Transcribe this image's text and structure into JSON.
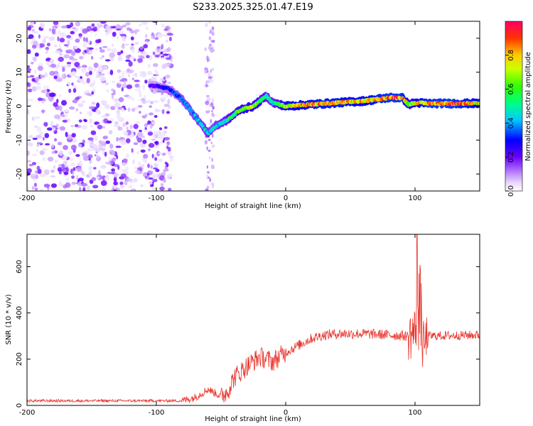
{
  "title": "S233.2025.325.01.47.E19",
  "chart_data": [
    {
      "type": "heatmap",
      "xlabel": "Height of straight line (km)",
      "ylabel": "Frequency (Hz)",
      "xlim": [
        -200,
        150
      ],
      "ylim": [
        -25,
        25
      ],
      "xticks": [
        -200,
        -100,
        0,
        100
      ],
      "yticks": [
        20,
        10,
        0,
        -10,
        -20
      ],
      "colorbar": {
        "label": "Normalized spectral amplitude",
        "range": [
          0,
          1
        ],
        "ticks": [
          0.0,
          0.2,
          0.4,
          0.6,
          0.8
        ],
        "tick_labels": [
          "0.0",
          "0.2",
          "0.4",
          "0.6",
          "0.8"
        ]
      },
      "ridge": {
        "description_points_x_km": [
          -100,
          -90,
          -80,
          -70,
          -60,
          -55,
          -45,
          -35,
          -25,
          -15,
          -10,
          0,
          20,
          40,
          60,
          80,
          90,
          95,
          100,
          110,
          130,
          150
        ],
        "frequency_hz": [
          6,
          5,
          2,
          -3,
          -8,
          -6,
          -4,
          -1,
          0,
          3,
          1,
          0,
          0.5,
          1,
          1.5,
          2.5,
          2.5,
          0.5,
          1,
          0.8,
          0.8,
          0.8
        ],
        "amplitude": [
          0.25,
          0.35,
          0.4,
          0.45,
          0.5,
          0.45,
          0.55,
          0.7,
          0.75,
          0.55,
          0.5,
          0.8,
          0.9,
          0.9,
          0.85,
          0.95,
          0.95,
          0.7,
          0.8,
          0.95,
          0.95,
          0.85
        ]
      },
      "noise_region_x_km": [
        -200,
        -88
      ]
    },
    {
      "type": "line",
      "xlabel": "Height of straight line (km)",
      "ylabel": "SNR (10 * v/v)",
      "xlim": [
        -200,
        150
      ],
      "ylim": [
        0,
        740
      ],
      "xticks": [
        -200,
        -100,
        0,
        100
      ],
      "yticks": [
        0,
        200,
        400,
        600
      ],
      "series": [
        {
          "name": "SNR",
          "color": "#e8352d",
          "trend_x": [
            -200,
            -80,
            -70,
            -60,
            -50,
            -45,
            -40,
            -30,
            -20,
            -10,
            0,
            10,
            20,
            30,
            40,
            60,
            80,
            95,
            100,
            103,
            106,
            110,
            150
          ],
          "trend_y": [
            20,
            20,
            35,
            70,
            40,
            60,
            120,
            170,
            210,
            190,
            230,
            260,
            290,
            305,
            310,
            310,
            305,
            300,
            320,
            420,
            250,
            300,
            305
          ]
        }
      ]
    }
  ],
  "colors": {
    "line": "#e8352d",
    "axis": "#000000"
  }
}
